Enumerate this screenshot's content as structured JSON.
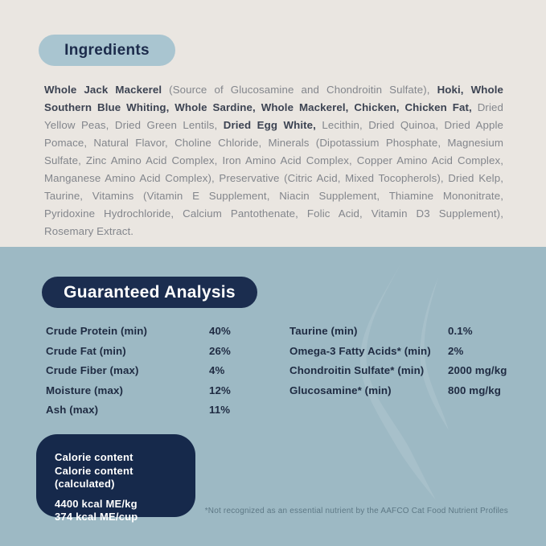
{
  "colors": {
    "top_background": "#eae6e1",
    "bottom_background": "#9db9c4",
    "light_blue_pill": "#a9c5d0",
    "navy": "#1b2d4f",
    "body_text_gray": "#83868c",
    "body_text_bold": "#3c4352",
    "table_text": "#1f2b42",
    "footnote_text": "#5d7885"
  },
  "ingredients": {
    "title": "Ingredients",
    "segments": [
      {
        "text": "Whole Jack Mackerel",
        "bold": true
      },
      {
        "text": " (Source of Glucosamine and Chondroitin Sulfate), ",
        "bold": false
      },
      {
        "text": "Hoki, Whole Southern Blue Whiting, Whole Sardine, Whole Mackerel, Chicken, Chicken Fat,",
        "bold": true
      },
      {
        "text": " Dried Yellow Peas, Dried Green Lentils, ",
        "bold": false
      },
      {
        "text": "Dried Egg White,",
        "bold": true
      },
      {
        "text": " Lecithin, Dried Quinoa, Dried Apple Pomace, Natural Flavor, Choline Chloride, Minerals (Dipotassium Phosphate, Magnesium Sulfate, Zinc Amino Acid Complex, Iron Amino Acid Complex, Copper Amino Acid Complex, Manganese Amino Acid Complex), Preservative (Citric Acid, Mixed Tocopherols), Dried Kelp, Taurine, Vitamins (Vitamin E Supplement, Niacin Supplement, Thiamine Mononitrate, Pyridoxine Hydrochloride, Calcium Pantothenate, Folic Acid, Vitamin D3 Supplement), Rosemary Extract.",
        "bold": false
      }
    ]
  },
  "guaranteed_analysis": {
    "title": "Guaranteed Analysis",
    "left_rows": [
      {
        "label": "Crude Protein (min)",
        "value": "40%"
      },
      {
        "label": "Crude Fat (min)",
        "value": "26%"
      },
      {
        "label": "Crude Fiber (max)",
        "value": "4%"
      },
      {
        "label": "Moisture (max)",
        "value": "12%"
      },
      {
        "label": "Ash (max)",
        "value": "11%"
      }
    ],
    "right_rows": [
      {
        "label": "Taurine (min)",
        "value": "0.1%"
      },
      {
        "label": "Omega-3 Fatty Acids* (min)",
        "value": "2%"
      },
      {
        "label": "Chondroitin Sulfate* (min)",
        "value": "2000 mg/kg"
      },
      {
        "label": "Glucosamine* (min)",
        "value": "800 mg/kg"
      }
    ]
  },
  "calorie_box": {
    "line1": "Calorie content",
    "line2": "Calorie content (calculated)",
    "line3": "4400 kcal ME/kg",
    "line4": "374 kcal ME/cup"
  },
  "footnote": "*Not recognized as an essential nutrient by the AAFCO Cat Food Nutrient Profiles"
}
